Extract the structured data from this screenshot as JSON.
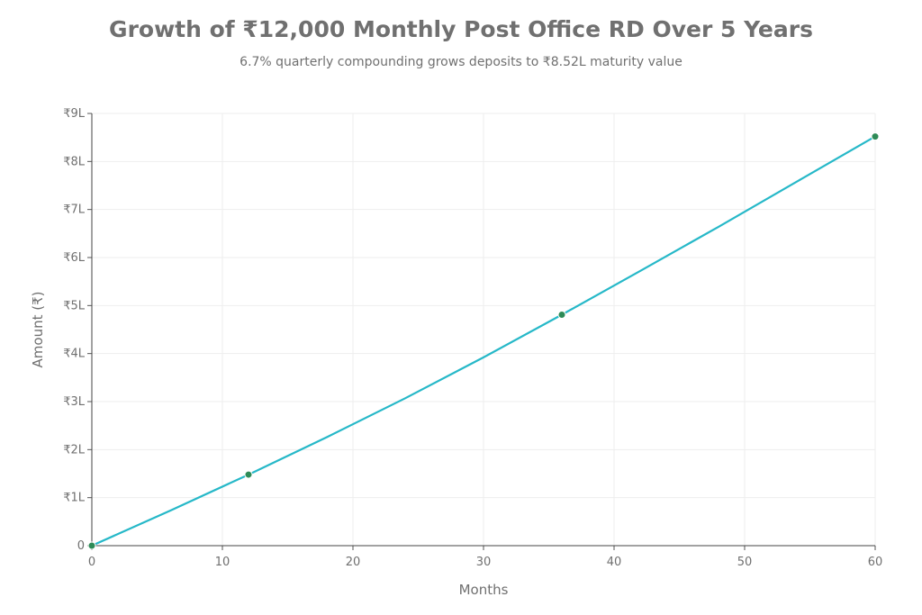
{
  "chart_data": {
    "type": "line",
    "title": "Growth of ₹12,000 Monthly Post Office RD Over 5 Years",
    "subtitle": "6.7% quarterly compounding grows deposits to ₹8.52L maturity value",
    "xlabel": "Months",
    "ylabel": "Amount (₹)",
    "xlim": [
      0,
      60
    ],
    "ylim": [
      0,
      900000
    ],
    "x_ticks": [
      0,
      10,
      20,
      30,
      40,
      50,
      60
    ],
    "y_ticks": [
      {
        "value": 0,
        "label": "0"
      },
      {
        "value": 100000,
        "label": "₹1L"
      },
      {
        "value": 200000,
        "label": "₹2L"
      },
      {
        "value": 300000,
        "label": "₹3L"
      },
      {
        "value": 400000,
        "label": "₹4L"
      },
      {
        "value": 500000,
        "label": "₹5L"
      },
      {
        "value": 600000,
        "label": "₹6L"
      },
      {
        "value": 700000,
        "label": "₹7L"
      },
      {
        "value": 800000,
        "label": "₹8L"
      },
      {
        "value": 900000,
        "label": "₹9L"
      }
    ],
    "grid": true,
    "line_color": "#26b8c8",
    "marker_color": "#2e8b57",
    "curve": {
      "x": [
        0,
        6,
        12,
        18,
        24,
        30,
        36,
        42,
        48,
        54,
        60
      ],
      "y": [
        0,
        73000,
        148000,
        226000,
        307000,
        392000,
        481000,
        572000,
        664000,
        758000,
        852000
      ]
    },
    "markers": {
      "x": [
        0,
        12,
        36,
        60
      ],
      "y": [
        0,
        148000,
        481000,
        852000
      ]
    }
  }
}
